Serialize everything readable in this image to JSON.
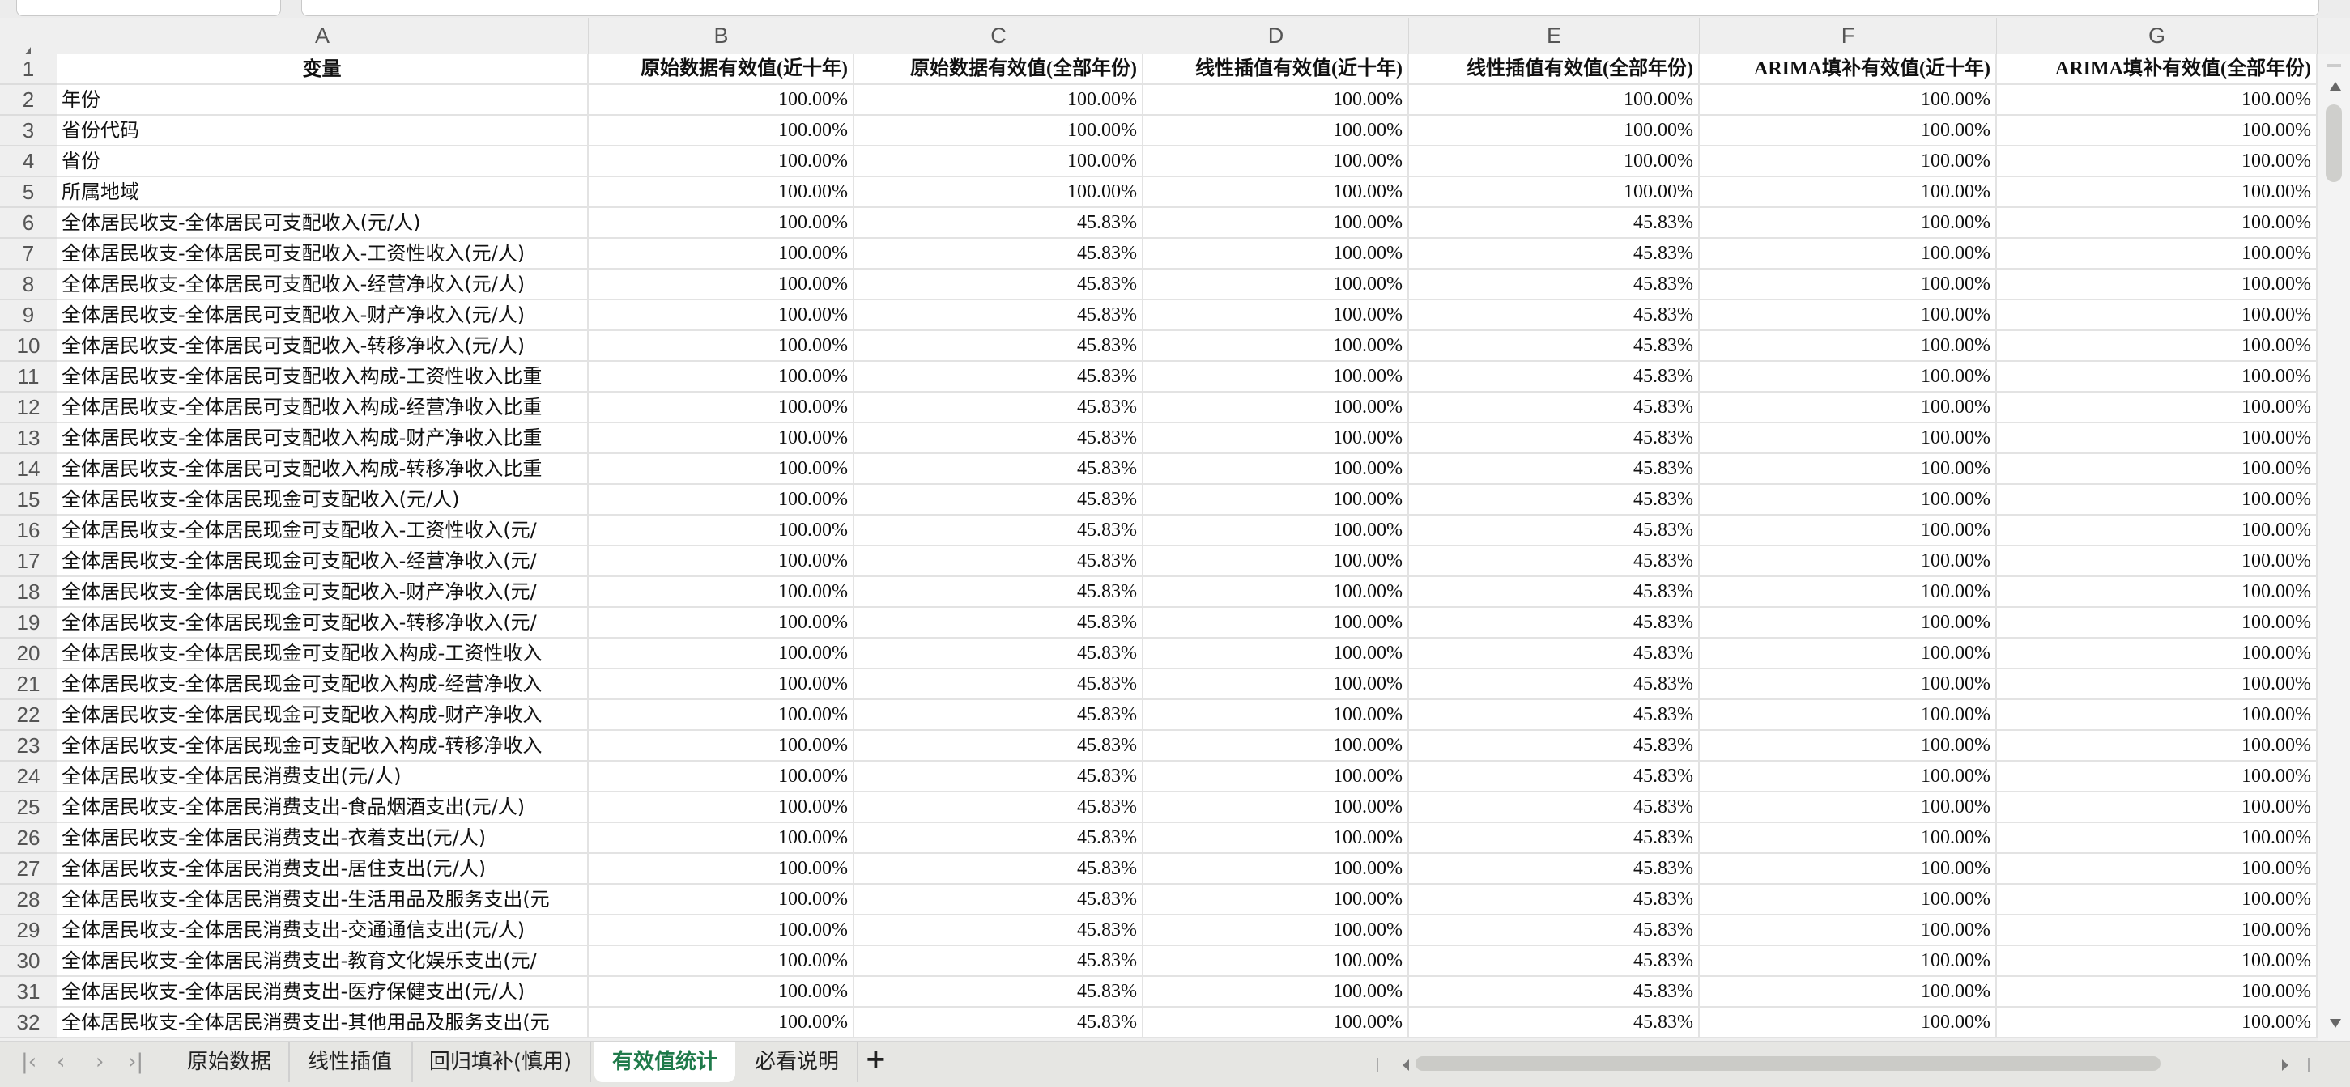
{
  "columns": [
    "A",
    "B",
    "C",
    "D",
    "E",
    "F",
    "G"
  ],
  "header_row": [
    "变量",
    "原始数据有效值(近十年)",
    "原始数据有效值(全部年份)",
    "线性插值有效值(近十年)",
    "线性插值有效值(全部年份)",
    "ARIMA填补有效值(近十年)",
    "ARIMA填补有效值(全部年份)"
  ],
  "rows": [
    [
      "年份",
      "100.00%",
      "100.00%",
      "100.00%",
      "100.00%",
      "100.00%",
      "100.00%"
    ],
    [
      "省份代码",
      "100.00%",
      "100.00%",
      "100.00%",
      "100.00%",
      "100.00%",
      "100.00%"
    ],
    [
      "省份",
      "100.00%",
      "100.00%",
      "100.00%",
      "100.00%",
      "100.00%",
      "100.00%"
    ],
    [
      "所属地域",
      "100.00%",
      "100.00%",
      "100.00%",
      "100.00%",
      "100.00%",
      "100.00%"
    ],
    [
      "全体居民收支-全体居民可支配收入(元/人)",
      "100.00%",
      "45.83%",
      "100.00%",
      "45.83%",
      "100.00%",
      "100.00%"
    ],
    [
      "全体居民收支-全体居民可支配收入-工资性收入(元/人)",
      "100.00%",
      "45.83%",
      "100.00%",
      "45.83%",
      "100.00%",
      "100.00%"
    ],
    [
      "全体居民收支-全体居民可支配收入-经营净收入(元/人)",
      "100.00%",
      "45.83%",
      "100.00%",
      "45.83%",
      "100.00%",
      "100.00%"
    ],
    [
      "全体居民收支-全体居民可支配收入-财产净收入(元/人)",
      "100.00%",
      "45.83%",
      "100.00%",
      "45.83%",
      "100.00%",
      "100.00%"
    ],
    [
      "全体居民收支-全体居民可支配收入-转移净收入(元/人)",
      "100.00%",
      "45.83%",
      "100.00%",
      "45.83%",
      "100.00%",
      "100.00%"
    ],
    [
      "全体居民收支-全体居民可支配收入构成-工资性收入比重",
      "100.00%",
      "45.83%",
      "100.00%",
      "45.83%",
      "100.00%",
      "100.00%"
    ],
    [
      "全体居民收支-全体居民可支配收入构成-经营净收入比重",
      "100.00%",
      "45.83%",
      "100.00%",
      "45.83%",
      "100.00%",
      "100.00%"
    ],
    [
      "全体居民收支-全体居民可支配收入构成-财产净收入比重",
      "100.00%",
      "45.83%",
      "100.00%",
      "45.83%",
      "100.00%",
      "100.00%"
    ],
    [
      "全体居民收支-全体居民可支配收入构成-转移净收入比重",
      "100.00%",
      "45.83%",
      "100.00%",
      "45.83%",
      "100.00%",
      "100.00%"
    ],
    [
      "全体居民收支-全体居民现金可支配收入(元/人)",
      "100.00%",
      "45.83%",
      "100.00%",
      "45.83%",
      "100.00%",
      "100.00%"
    ],
    [
      "全体居民收支-全体居民现金可支配收入-工资性收入(元/",
      "100.00%",
      "45.83%",
      "100.00%",
      "45.83%",
      "100.00%",
      "100.00%"
    ],
    [
      "全体居民收支-全体居民现金可支配收入-经营净收入(元/",
      "100.00%",
      "45.83%",
      "100.00%",
      "45.83%",
      "100.00%",
      "100.00%"
    ],
    [
      "全体居民收支-全体居民现金可支配收入-财产净收入(元/",
      "100.00%",
      "45.83%",
      "100.00%",
      "45.83%",
      "100.00%",
      "100.00%"
    ],
    [
      "全体居民收支-全体居民现金可支配收入-转移净收入(元/",
      "100.00%",
      "45.83%",
      "100.00%",
      "45.83%",
      "100.00%",
      "100.00%"
    ],
    [
      "全体居民收支-全体居民现金可支配收入构成-工资性收入",
      "100.00%",
      "45.83%",
      "100.00%",
      "45.83%",
      "100.00%",
      "100.00%"
    ],
    [
      "全体居民收支-全体居民现金可支配收入构成-经营净收入",
      "100.00%",
      "45.83%",
      "100.00%",
      "45.83%",
      "100.00%",
      "100.00%"
    ],
    [
      "全体居民收支-全体居民现金可支配收入构成-财产净收入",
      "100.00%",
      "45.83%",
      "100.00%",
      "45.83%",
      "100.00%",
      "100.00%"
    ],
    [
      "全体居民收支-全体居民现金可支配收入构成-转移净收入",
      "100.00%",
      "45.83%",
      "100.00%",
      "45.83%",
      "100.00%",
      "100.00%"
    ],
    [
      "全体居民收支-全体居民消费支出(元/人)",
      "100.00%",
      "45.83%",
      "100.00%",
      "45.83%",
      "100.00%",
      "100.00%"
    ],
    [
      "全体居民收支-全体居民消费支出-食品烟酒支出(元/人)",
      "100.00%",
      "45.83%",
      "100.00%",
      "45.83%",
      "100.00%",
      "100.00%"
    ],
    [
      "全体居民收支-全体居民消费支出-衣着支出(元/人)",
      "100.00%",
      "45.83%",
      "100.00%",
      "45.83%",
      "100.00%",
      "100.00%"
    ],
    [
      "全体居民收支-全体居民消费支出-居住支出(元/人)",
      "100.00%",
      "45.83%",
      "100.00%",
      "45.83%",
      "100.00%",
      "100.00%"
    ],
    [
      "全体居民收支-全体居民消费支出-生活用品及服务支出(元",
      "100.00%",
      "45.83%",
      "100.00%",
      "45.83%",
      "100.00%",
      "100.00%"
    ],
    [
      "全体居民收支-全体居民消费支出-交通通信支出(元/人)",
      "100.00%",
      "45.83%",
      "100.00%",
      "45.83%",
      "100.00%",
      "100.00%"
    ],
    [
      "全体居民收支-全体居民消费支出-教育文化娱乐支出(元/",
      "100.00%",
      "45.83%",
      "100.00%",
      "45.83%",
      "100.00%",
      "100.00%"
    ],
    [
      "全体居民收支-全体居民消费支出-医疗保健支出(元/人)",
      "100.00%",
      "45.83%",
      "100.00%",
      "45.83%",
      "100.00%",
      "100.00%"
    ],
    [
      "全体居民收支-全体居民消费支出-其他用品及服务支出(元",
      "100.00%",
      "45.83%",
      "100.00%",
      "45.83%",
      "100.00%",
      "100.00%"
    ]
  ],
  "tabs": {
    "items": [
      "原始数据",
      "线性插值",
      "回归填补(慎用)",
      "有效值统计",
      "必看说明"
    ],
    "active": "有效值统计",
    "add_label": "+"
  },
  "nav_icons": [
    "first-sheet-icon",
    "prev-sheet-icon",
    "next-sheet-icon",
    "last-sheet-icon"
  ],
  "colors": {
    "active_tab": "#1f7a4a"
  }
}
